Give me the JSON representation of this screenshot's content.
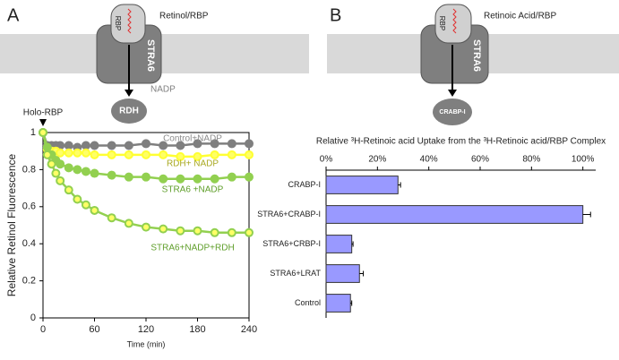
{
  "diagrams": {
    "panel_a": {
      "letter": "A",
      "complex": "Retinol/RBP",
      "rbp": "RBP",
      "receptor": "STRA6",
      "cofactor": "NADP",
      "enzyme": "RDH"
    },
    "panel_b": {
      "letter": "B",
      "complex": "Retinoic Acid/RBP",
      "rbp": "RBP",
      "receptor": "STRA6",
      "acceptor": "CRABP-I"
    }
  },
  "chart_data": [
    {
      "type": "line",
      "annotation": "Holo-RBP",
      "x_label": "Time (min)",
      "y_label": "Relative Retinol Fluorescence",
      "x": [
        0,
        5,
        10,
        15,
        20,
        30,
        40,
        50,
        60,
        80,
        100,
        120,
        140,
        160,
        180,
        200,
        220,
        240
      ],
      "series": [
        {
          "name": "Control+NADP",
          "color": "#7f7f7f",
          "marker_fill": "#7f7f7f",
          "label_color": "#8c8c8c",
          "values": [
            1,
            0.93,
            0.93,
            0.93,
            0.93,
            0.93,
            0.92,
            0.93,
            0.93,
            0.93,
            0.93,
            0.94,
            0.93,
            0.93,
            0.94,
            0.94,
            0.94,
            0.94
          ]
        },
        {
          "name": "RDH+ NADP",
          "color": "#ffff33",
          "marker_fill": "#ffff66",
          "label_color": "#a8a820",
          "values": [
            1,
            0.91,
            0.9,
            0.9,
            0.89,
            0.89,
            0.89,
            0.89,
            0.88,
            0.88,
            0.88,
            0.88,
            0.88,
            0.87,
            0.87,
            0.88,
            0.88,
            0.88
          ]
        },
        {
          "name": "STRA6 +NADP",
          "color": "#92d050",
          "marker_fill": "#92d050",
          "label_color": "#5f9e2a",
          "values": [
            1,
            0.92,
            0.88,
            0.85,
            0.83,
            0.81,
            0.8,
            0.79,
            0.78,
            0.77,
            0.76,
            0.76,
            0.75,
            0.75,
            0.75,
            0.75,
            0.76,
            0.76
          ]
        },
        {
          "name": "STRA6+NADP+RDH",
          "color": "#92d050",
          "marker_fill": "#ffff66",
          "label_color": "#5f9e2a",
          "values": [
            1,
            0.88,
            0.83,
            0.78,
            0.74,
            0.69,
            0.64,
            0.61,
            0.58,
            0.54,
            0.51,
            0.49,
            0.48,
            0.47,
            0.47,
            0.46,
            0.46,
            0.46
          ]
        }
      ],
      "xlim": [
        0,
        240
      ],
      "xticks": [
        0,
        60,
        120,
        180,
        240
      ],
      "ylim": [
        0,
        1
      ],
      "yticks": [
        0,
        0.2,
        0.4,
        0.6,
        0.8,
        1
      ]
    },
    {
      "type": "bar",
      "orientation": "horizontal",
      "title": "Relative ³H-Retinoic acid Uptake from the ³H-Retinoic acid/RBP Complex",
      "categories": [
        "CRABP-I",
        "STRA6+CRABP-I",
        "STRA6+CRBP-I",
        "STRA6+LRAT",
        "Control"
      ],
      "values": [
        28,
        100,
        10,
        13,
        9.5
      ],
      "errors": [
        1,
        3,
        0.5,
        1.5,
        0.5
      ],
      "color": "#9999ff",
      "xlim": [
        0,
        105
      ],
      "xticks": [
        {
          "value": 0,
          "label": "0%"
        },
        {
          "value": 20,
          "label": "20%"
        },
        {
          "value": 40,
          "label": "40%"
        },
        {
          "value": 60,
          "label": "60%"
        },
        {
          "value": 80,
          "label": "80%"
        },
        {
          "value": 100,
          "label": "100%"
        }
      ]
    }
  ]
}
